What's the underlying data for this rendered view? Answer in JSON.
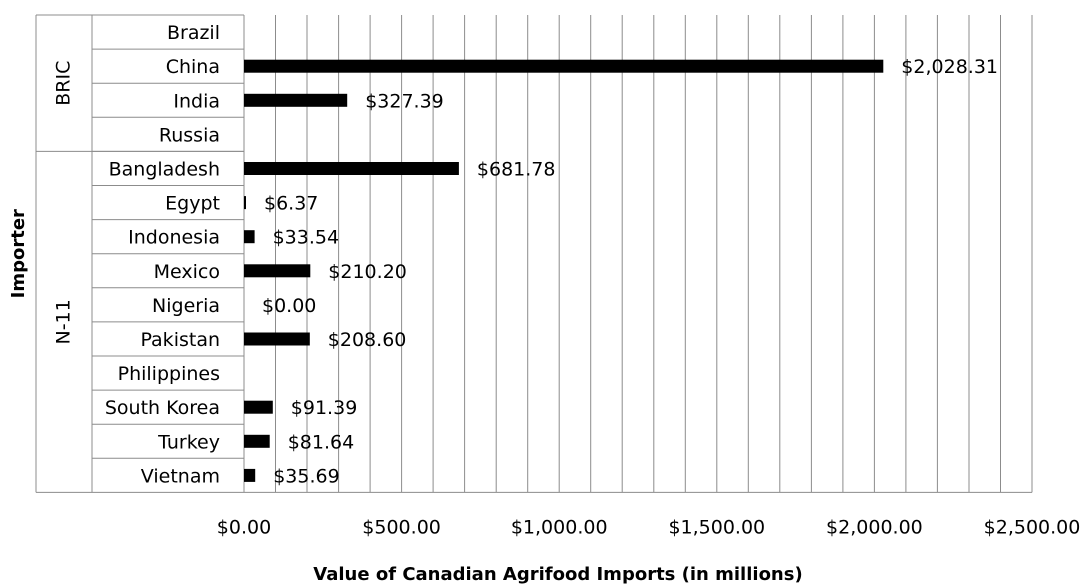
{
  "chart_data": {
    "type": "bar",
    "orientation": "horizontal",
    "xlabel": "Value of Canadian Agrifood Imports (in millions)",
    "ylabel": "Importer",
    "xlim": [
      0,
      2500
    ],
    "xticks": [
      0,
      500,
      1000,
      1500,
      2000,
      2500
    ],
    "xtick_labels": [
      "$0.00",
      "$500.00",
      "$1,000.00",
      "$1,500.00",
      "$2,000.00",
      "$2,500.00"
    ],
    "grid": "vertical",
    "legend": "none",
    "bar_color": "#000000",
    "groups": [
      {
        "name": "BRIC",
        "categories": [
          {
            "label": "Brazil",
            "value": null,
            "value_label": ""
          },
          {
            "label": "China",
            "value": 2028.31,
            "value_label": "$2,028.31"
          },
          {
            "label": "India",
            "value": 327.39,
            "value_label": "$327.39"
          },
          {
            "label": "Russia",
            "value": null,
            "value_label": ""
          }
        ]
      },
      {
        "name": "N-11",
        "categories": [
          {
            "label": "Bangladesh",
            "value": 681.78,
            "value_label": "$681.78"
          },
          {
            "label": "Egypt",
            "value": 6.37,
            "value_label": "$6.37"
          },
          {
            "label": "Indonesia",
            "value": 33.54,
            "value_label": "$33.54"
          },
          {
            "label": "Mexico",
            "value": 210.2,
            "value_label": "$210.20"
          },
          {
            "label": "Nigeria",
            "value": 0.0,
            "value_label": "$0.00"
          },
          {
            "label": "Pakistan",
            "value": 208.6,
            "value_label": "$208.60"
          },
          {
            "label": "Philippines",
            "value": null,
            "value_label": ""
          },
          {
            "label": "South Korea",
            "value": 91.39,
            "value_label": "$91.39"
          },
          {
            "label": "Turkey",
            "value": 81.64,
            "value_label": "$81.64"
          },
          {
            "label": "Vietnam",
            "value": 35.69,
            "value_label": "$35.69"
          }
        ]
      }
    ]
  }
}
